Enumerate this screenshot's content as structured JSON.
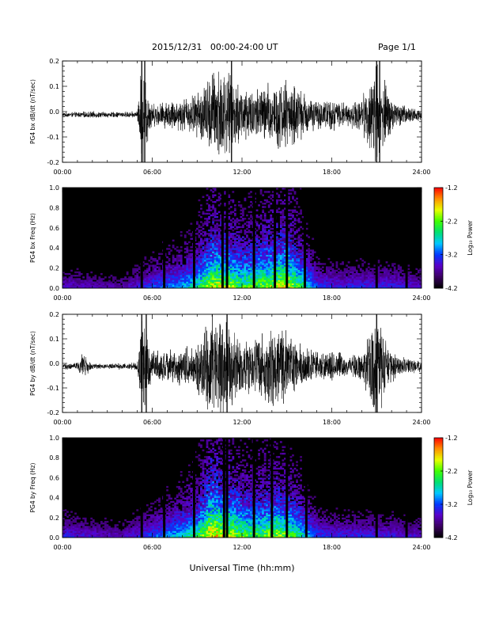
{
  "header": {
    "title": "2015/12/31   00:00-24:00 UT",
    "page": "Page 1/1"
  },
  "x_axis_title": "Universal Time (hh:mm)",
  "colorbar": {
    "ticks": [
      "-1.2",
      "-2.2",
      "-3.2",
      "-4.2"
    ],
    "label": "Log₁₀ Power",
    "range": [
      -4.2,
      -1.2
    ],
    "colormap": [
      "#000000",
      "#3a0060",
      "#5a00c8",
      "#0038ff",
      "#00c8ff",
      "#00e070",
      "#40ff00",
      "#e8ff00",
      "#ff9000",
      "#ff0000"
    ]
  },
  "chart_data": [
    {
      "type": "line",
      "panel": "bx-waveform",
      "ylabel": "PG4 bx dB/dt (nT/sec)",
      "x_ticks": [
        "00:00",
        "06:00",
        "12:00",
        "18:00",
        "24:00"
      ],
      "y_ticks": [
        "0.2",
        "0.1",
        "0.0",
        "-0.1",
        "-0.2"
      ],
      "xlim": [
        0,
        24
      ],
      "ylim": [
        -0.2,
        0.2
      ],
      "line_color": "#000000",
      "series": [
        {
          "x": [
            0,
            1,
            2,
            3,
            4,
            5,
            5.3,
            6,
            7,
            8,
            9,
            10,
            10.5,
            11,
            12,
            13,
            14,
            15,
            16,
            17,
            18,
            19,
            20,
            21,
            22,
            23,
            24
          ],
          "amplitude": [
            0.008,
            0.01,
            0.012,
            0.01,
            0.01,
            0.012,
            0.2,
            0.04,
            0.05,
            0.06,
            0.08,
            0.16,
            0.2,
            0.15,
            0.11,
            0.1,
            0.12,
            0.13,
            0.09,
            0.05,
            0.06,
            0.04,
            0.06,
            0.2,
            0.06,
            0.03,
            0.02
          ]
        }
      ],
      "spikes_hours": [
        5.3,
        5.5,
        11.3,
        21.0,
        21.2
      ]
    },
    {
      "type": "heatmap",
      "panel": "bx-spectrogram",
      "ylabel": "PG4 bx Freq (Hz)",
      "x_ticks": [
        "00:00",
        "06:00",
        "12:00",
        "18:00",
        "24:00"
      ],
      "y_ticks": [
        "1.0",
        "0.8",
        "0.6",
        "0.4",
        "0.2",
        "0.0"
      ],
      "xlim": [
        0,
        24
      ],
      "ylim": [
        0,
        1.0
      ],
      "activity_hours": [
        0,
        2,
        4,
        6,
        8,
        9,
        10,
        11,
        12,
        13,
        14,
        15,
        16,
        17,
        18,
        20,
        22,
        24
      ],
      "activity_level": [
        0.25,
        0.22,
        0.2,
        0.35,
        0.45,
        0.55,
        0.8,
        0.75,
        0.65,
        0.7,
        0.75,
        0.8,
        0.6,
        0.35,
        0.3,
        0.3,
        0.3,
        0.25
      ],
      "gap_hours": [
        5.3,
        6.8,
        8.8,
        10.7,
        11.0,
        12.8,
        14.2,
        15.0,
        16.2,
        21.0,
        23.0
      ]
    },
    {
      "type": "line",
      "panel": "by-waveform",
      "ylabel": "PG4 by dB/dt (nT/sec)",
      "x_ticks": [
        "00:00",
        "06:00",
        "12:00",
        "18:00",
        "24:00"
      ],
      "y_ticks": [
        "0.2",
        "0.1",
        "0.0",
        "-0.1",
        "-0.2"
      ],
      "xlim": [
        0,
        24
      ],
      "ylim": [
        -0.2,
        0.2
      ],
      "line_color": "#000000",
      "series": [
        {
          "x": [
            0,
            1,
            1.3,
            2,
            3,
            4,
            5,
            5.3,
            6,
            7,
            8,
            9,
            10,
            10.5,
            11,
            12,
            13,
            14,
            15,
            16,
            17,
            18,
            19,
            20,
            21,
            22,
            23,
            24
          ],
          "amplitude": [
            0.01,
            0.015,
            0.05,
            0.01,
            0.01,
            0.012,
            0.015,
            0.18,
            0.06,
            0.06,
            0.07,
            0.09,
            0.2,
            0.2,
            0.16,
            0.1,
            0.12,
            0.14,
            0.13,
            0.08,
            0.05,
            0.06,
            0.04,
            0.05,
            0.2,
            0.06,
            0.03,
            0.02
          ]
        }
      ],
      "spikes_hours": [
        5.3,
        5.6,
        11.0,
        21.0
      ]
    },
    {
      "type": "heatmap",
      "panel": "by-spectrogram",
      "ylabel": "PG4 by Freq (Hz)",
      "x_ticks": [
        "00:00",
        "06:00",
        "12:00",
        "18:00",
        "24:00"
      ],
      "y_ticks": [
        "1.0",
        "0.8",
        "0.6",
        "0.4",
        "0.2",
        "0.0"
      ],
      "xlim": [
        0,
        24
      ],
      "ylim": [
        0,
        1.0
      ],
      "activity_hours": [
        0,
        2,
        4,
        6,
        8,
        9,
        10,
        11,
        12,
        13,
        14,
        15,
        16,
        17,
        18,
        20,
        22,
        24
      ],
      "activity_level": [
        0.3,
        0.25,
        0.22,
        0.35,
        0.5,
        0.6,
        0.9,
        0.8,
        0.7,
        0.65,
        0.75,
        0.7,
        0.55,
        0.35,
        0.3,
        0.3,
        0.28,
        0.25
      ],
      "gap_hours": [
        5.3,
        6.8,
        8.8,
        10.8,
        11.0,
        12.8,
        14.0,
        15.0,
        16.3,
        21.0,
        23.0
      ]
    }
  ]
}
